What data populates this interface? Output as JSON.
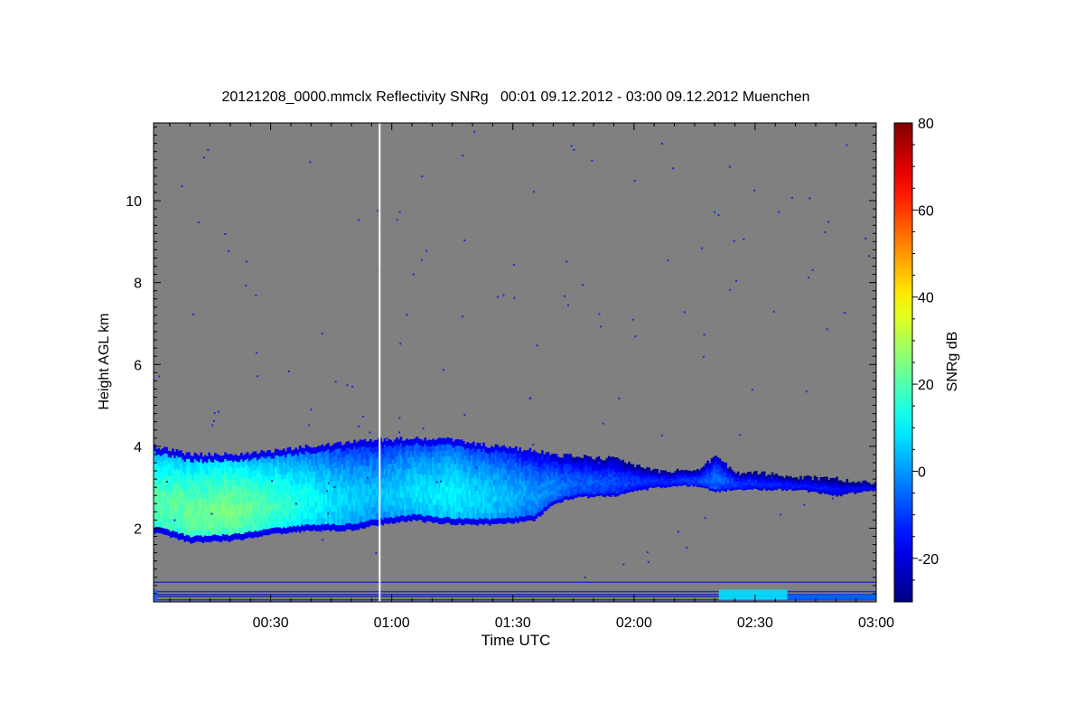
{
  "chart_data": {
    "type": "heatmap",
    "title": "20121208_0000.mmclx Reflectivity SNRg   00:01 09.12.2012 - 03:00 09.12.2012 Muenchen",
    "xlabel": "Time UTC",
    "ylabel": "Height AGL km",
    "x_tick_labels": [
      "00:30",
      "01:00",
      "01:30",
      "02:00",
      "02:30",
      "03:00"
    ],
    "x_ticks_minutes": [
      30,
      60,
      90,
      120,
      150,
      180
    ],
    "xlim_minutes": [
      1,
      180
    ],
    "y_ticks": [
      2,
      4,
      6,
      8,
      10
    ],
    "ylim": [
      0.2,
      11.9
    ],
    "colorbar": {
      "label": "SNRg dB",
      "range": [
        -30,
        80
      ],
      "ticks": [
        -20,
        0,
        20,
        40,
        60,
        80
      ]
    },
    "background_color": "#808080",
    "missing_data_line_minutes": 57,
    "cloud_layer": {
      "x_minutes": [
        1,
        10,
        20,
        30,
        40,
        50,
        57,
        65,
        75,
        85,
        95,
        100,
        105,
        115,
        125,
        135,
        140,
        145,
        150,
        160,
        170,
        180
      ],
      "base_km": [
        1.9,
        1.65,
        1.7,
        1.85,
        1.95,
        1.95,
        2.1,
        2.2,
        2.1,
        2.1,
        2.2,
        2.6,
        2.75,
        2.8,
        3.0,
        3.05,
        2.9,
        2.95,
        2.95,
        2.95,
        2.8,
        2.95
      ],
      "top_km": [
        4.0,
        3.8,
        3.8,
        3.9,
        4.0,
        4.1,
        4.15,
        4.2,
        4.15,
        4.0,
        3.9,
        3.8,
        3.75,
        3.7,
        3.4,
        3.4,
        3.75,
        3.35,
        3.35,
        3.25,
        3.2,
        3.1
      ],
      "peak_snr_db": [
        28,
        30,
        32,
        26,
        20,
        14,
        12,
        16,
        18,
        14,
        8,
        6,
        2,
        0,
        -4,
        -2,
        4,
        -2,
        -4,
        -6,
        -8,
        -8
      ]
    },
    "near_ground_returns": {
      "line_heights_km": [
        0.25,
        0.33,
        0.38,
        0.45,
        0.68
      ],
      "patch": {
        "x_minutes": [
          141,
          158
        ],
        "height_km": [
          0.25,
          0.5
        ],
        "snr_db": 8
      }
    }
  }
}
